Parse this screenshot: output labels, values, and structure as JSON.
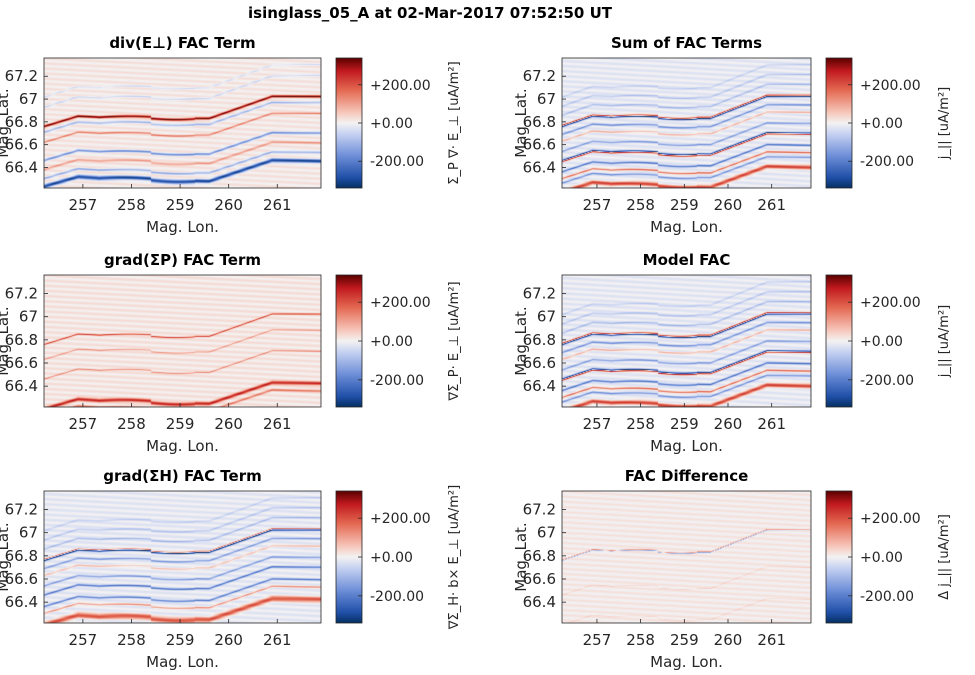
{
  "figure": {
    "title": "isinglass_05_A at 02-Mar-2017 07:52:50 UT"
  },
  "chart_data": [
    {
      "type": "heatmap",
      "panel": "top-left",
      "title": "div(E⊥) FAC Term",
      "xlabel": "Mag. Lon.",
      "ylabel": "Mag. Lat.",
      "xlim": [
        256.2,
        261.9
      ],
      "ylim": [
        66.22,
        67.36
      ],
      "xticks": [
        257,
        258,
        259,
        260,
        261
      ],
      "yticks": [
        66.4,
        66.6,
        66.8,
        67,
        67.2
      ],
      "colorbar": {
        "label": "Σ_P ∇· E_⊥ [uA/m²]",
        "clim": [
          -340,
          340
        ],
        "ticks": [
          "+200.00",
          "+0.00",
          "-200.00"
        ]
      },
      "arcs": [
        {
          "offset": 0.0,
          "amp": 0.95,
          "width": 0.01
        },
        {
          "offset": -0.05,
          "amp": -0.35,
          "width": 0.01
        },
        {
          "offset": -0.14,
          "amp": 0.4,
          "width": 0.008
        },
        {
          "offset": -0.3,
          "amp": -0.55,
          "width": 0.01
        },
        {
          "offset": -0.38,
          "amp": 0.3,
          "width": 0.01
        },
        {
          "offset": -0.46,
          "amp": -0.4,
          "width": 0.01
        },
        {
          "offset": -0.53,
          "amp": -0.95,
          "width": 0.016
        },
        {
          "offset": 0.17,
          "amp": -0.2,
          "width": 0.008
        },
        {
          "offset": 0.26,
          "amp": -0.15,
          "width": 0.008
        }
      ],
      "background": 0.04
    },
    {
      "type": "heatmap",
      "panel": "top-right",
      "title": "Sum of FAC Terms",
      "xlabel": "Mag. Lon.",
      "ylabel": "Mag. Lat.",
      "xlim": [
        256.2,
        261.9
      ],
      "ylim": [
        66.22,
        67.36
      ],
      "xticks": [
        257,
        258,
        259,
        260,
        261
      ],
      "yticks": [
        66.4,
        66.6,
        66.8,
        67,
        67.2
      ],
      "colorbar": {
        "label": "j_|| [uA/m²]",
        "clim": [
          -340,
          340
        ],
        "ticks": [
          "+200.00",
          "+0.00",
          "-200.00"
        ]
      },
      "arcs": [
        {
          "offset": 0.0,
          "amp": -0.95,
          "width": 0.007
        },
        {
          "offset": 0.01,
          "amp": 0.8,
          "width": 0.007
        },
        {
          "offset": -0.07,
          "amp": -0.45,
          "width": 0.008
        },
        {
          "offset": -0.13,
          "amp": 0.3,
          "width": 0.008
        },
        {
          "offset": -0.22,
          "amp": -0.4,
          "width": 0.008
        },
        {
          "offset": -0.3,
          "amp": -0.95,
          "width": 0.007
        },
        {
          "offset": -0.31,
          "amp": 0.85,
          "width": 0.007
        },
        {
          "offset": -0.4,
          "amp": -0.6,
          "width": 0.008
        },
        {
          "offset": -0.46,
          "amp": 0.55,
          "width": 0.008
        },
        {
          "offset": -0.5,
          "amp": -0.45,
          "width": 0.008
        },
        {
          "offset": -0.58,
          "amp": 0.7,
          "width": 0.018
        },
        {
          "offset": 0.1,
          "amp": -0.25,
          "width": 0.008
        },
        {
          "offset": 0.18,
          "amp": -0.2,
          "width": 0.008
        },
        {
          "offset": 0.26,
          "amp": -0.15,
          "width": 0.008
        }
      ],
      "background": -0.05
    },
    {
      "type": "heatmap",
      "panel": "middle-left",
      "title": "grad(ΣP) FAC Term",
      "xlabel": "Mag. Lon.",
      "ylabel": "Mag. Lat.",
      "xlim": [
        256.2,
        261.9
      ],
      "ylim": [
        66.22,
        67.36
      ],
      "xticks": [
        257,
        258,
        259,
        260,
        261
      ],
      "yticks": [
        66.4,
        66.6,
        66.8,
        67,
        67.2
      ],
      "colorbar": {
        "label": "∇Σ_P· E_⊥ [uA/m²]",
        "clim": [
          -340,
          340
        ],
        "ticks": [
          "+200.00",
          "+0.00",
          "-200.00"
        ]
      },
      "arcs": [
        {
          "offset": 0.0,
          "amp": 0.6,
          "width": 0.006
        },
        {
          "offset": -0.13,
          "amp": 0.3,
          "width": 0.006
        },
        {
          "offset": -0.3,
          "amp": 0.35,
          "width": 0.006
        },
        {
          "offset": -0.56,
          "amp": 0.75,
          "width": 0.014
        },
        {
          "offset": -0.62,
          "amp": 0.4,
          "width": 0.01
        }
      ],
      "background": 0.05
    },
    {
      "type": "heatmap",
      "panel": "middle-right",
      "title": "Model FAC",
      "xlabel": "Mag. Lon.",
      "ylabel": "Mag. Lat.",
      "xlim": [
        256.2,
        261.9
      ],
      "ylim": [
        66.22,
        67.36
      ],
      "xticks": [
        257,
        258,
        259,
        260,
        261
      ],
      "yticks": [
        66.4,
        66.6,
        66.8,
        67,
        67.2
      ],
      "colorbar": {
        "label": "j_|| [uA/m²]",
        "clim": [
          -340,
          340
        ],
        "ticks": [
          "+200.00",
          "+0.00",
          "-200.00"
        ]
      },
      "arcs": [
        {
          "offset": 0.0,
          "amp": -0.95,
          "width": 0.007
        },
        {
          "offset": 0.01,
          "amp": 0.8,
          "width": 0.007
        },
        {
          "offset": -0.07,
          "amp": -0.45,
          "width": 0.008
        },
        {
          "offset": -0.13,
          "amp": 0.3,
          "width": 0.008
        },
        {
          "offset": -0.22,
          "amp": -0.4,
          "width": 0.008
        },
        {
          "offset": -0.3,
          "amp": -0.95,
          "width": 0.007
        },
        {
          "offset": -0.31,
          "amp": 0.85,
          "width": 0.007
        },
        {
          "offset": -0.4,
          "amp": -0.6,
          "width": 0.008
        },
        {
          "offset": -0.46,
          "amp": 0.55,
          "width": 0.008
        },
        {
          "offset": -0.5,
          "amp": -0.45,
          "width": 0.008
        },
        {
          "offset": -0.58,
          "amp": 0.7,
          "width": 0.018
        },
        {
          "offset": 0.1,
          "amp": -0.25,
          "width": 0.008
        },
        {
          "offset": 0.18,
          "amp": -0.2,
          "width": 0.008
        },
        {
          "offset": 0.26,
          "amp": -0.15,
          "width": 0.008
        }
      ],
      "background": -0.05
    },
    {
      "type": "heatmap",
      "panel": "bottom-left",
      "title": "grad(ΣH) FAC Term",
      "xlabel": "Mag. Lon.",
      "ylabel": "Mag. Lat.",
      "xlim": [
        256.2,
        261.9
      ],
      "ylim": [
        66.22,
        67.36
      ],
      "xticks": [
        257,
        258,
        259,
        260,
        261
      ],
      "yticks": [
        66.4,
        66.6,
        66.8,
        67,
        67.2
      ],
      "colorbar": {
        "label": "∇Σ_H· b× E_⊥ [uA/m²]",
        "clim": [
          -340,
          340
        ],
        "ticks": [
          "+200.00",
          "+0.00",
          "-200.00"
        ]
      },
      "arcs": [
        {
          "offset": 0.0,
          "amp": -0.95,
          "width": 0.007
        },
        {
          "offset": 0.01,
          "amp": 0.6,
          "width": 0.006
        },
        {
          "offset": -0.07,
          "amp": -0.4,
          "width": 0.008
        },
        {
          "offset": -0.13,
          "amp": 0.25,
          "width": 0.008
        },
        {
          "offset": -0.22,
          "amp": -0.4,
          "width": 0.008
        },
        {
          "offset": -0.3,
          "amp": -0.6,
          "width": 0.008
        },
        {
          "offset": -0.4,
          "amp": -0.55,
          "width": 0.008
        },
        {
          "offset": -0.46,
          "amp": 0.4,
          "width": 0.008
        },
        {
          "offset": -0.56,
          "amp": 0.65,
          "width": 0.022
        },
        {
          "offset": 0.1,
          "amp": -0.25,
          "width": 0.008
        },
        {
          "offset": 0.18,
          "amp": -0.2,
          "width": 0.008
        },
        {
          "offset": 0.26,
          "amp": -0.15,
          "width": 0.008
        }
      ],
      "background": -0.05
    },
    {
      "type": "heatmap",
      "panel": "bottom-right",
      "title": "FAC Difference",
      "xlabel": "Mag. Lon.",
      "ylabel": "Mag. Lat.",
      "xlim": [
        256.2,
        261.9
      ],
      "ylim": [
        66.22,
        67.36
      ],
      "xticks": [
        257,
        258,
        259,
        260,
        261
      ],
      "yticks": [
        66.4,
        66.6,
        66.8,
        67,
        67.2
      ],
      "colorbar": {
        "label": "Δ j_|| [uA/m²]",
        "clim": [
          -340,
          340
        ],
        "ticks": [
          "+200.00",
          "+0.00",
          "-200.00"
        ]
      },
      "arcs": [
        {
          "offset": 0.0,
          "amp": -0.45,
          "width": 0.004
        },
        {
          "offset": 0.005,
          "amp": 0.4,
          "width": 0.004
        },
        {
          "offset": -0.3,
          "amp": 0.12,
          "width": 0.004
        },
        {
          "offset": -0.56,
          "amp": 0.1,
          "width": 0.005
        }
      ],
      "background": 0.03
    }
  ]
}
